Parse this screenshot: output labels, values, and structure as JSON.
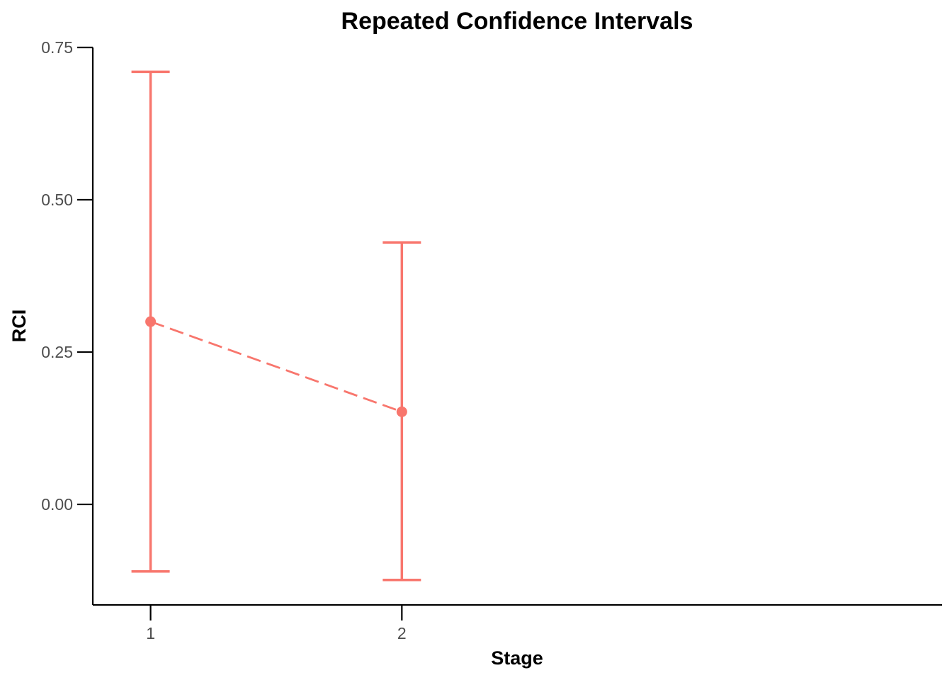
{
  "chart_data": {
    "type": "line",
    "title": "Repeated Confidence Intervals",
    "xlabel": "Stage",
    "ylabel": "RCI",
    "x": [
      1,
      2
    ],
    "x_ticks": [
      "1",
      "2"
    ],
    "xlim": [
      0.77,
      4.15
    ],
    "y_ticks": [
      "0.00",
      "0.25",
      "0.50",
      "0.75"
    ],
    "y_tick_values": [
      0,
      0.25,
      0.5,
      0.75
    ],
    "ylim": [
      -0.165,
      0.75
    ],
    "series": [
      {
        "estimate": [
          0.3,
          0.152
        ],
        "lower": [
          -0.11,
          -0.124
        ],
        "upper": [
          0.71,
          0.43
        ],
        "color": "#F8766D",
        "line_style": "dashed"
      }
    ],
    "grid": false,
    "legend": "none"
  }
}
